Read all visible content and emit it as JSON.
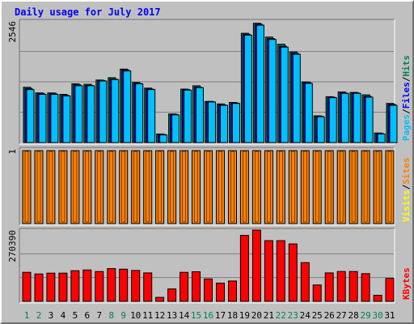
{
  "title": "Daily usage for July 2017",
  "colors": {
    "hits": "#00805c",
    "files": "#0000ff",
    "pages": "#00c0ff",
    "visits": "#ffff00",
    "sites": "#ff8000",
    "kbytes": "#ff0000",
    "day_green": "#00805c",
    "day_black": "#000000",
    "title": "#0000ff",
    "panel_bg": "#c0c0c0"
  },
  "chart_data": [
    {
      "type": "bar",
      "title": "Daily usage for July 2017",
      "axis_label_max": "2546",
      "legend": [
        {
          "text": "Hits",
          "color": "#00805c"
        },
        {
          "text": "/",
          "color": "#000000"
        },
        {
          "text": "Files",
          "color": "#0000ff"
        },
        {
          "text": "/",
          "color": "#000000"
        },
        {
          "text": "Pages",
          "color": "#00c0ff"
        }
      ],
      "categories": [
        "1",
        "2",
        "3",
        "4",
        "5",
        "6",
        "7",
        "8",
        "9",
        "10",
        "11",
        "12",
        "13",
        "14",
        "15",
        "16",
        "17",
        "18",
        "19",
        "20",
        "21",
        "22",
        "23",
        "24",
        "25",
        "26",
        "27",
        "28",
        "29",
        "30",
        "31"
      ],
      "ylim": [
        0,
        2546
      ],
      "series": [
        {
          "name": "Hits",
          "values": [
            1160,
            1040,
            1040,
            1010,
            1230,
            1220,
            1310,
            1360,
            1540,
            1260,
            1140,
            180,
            600,
            1120,
            1190,
            860,
            810,
            840,
            2290,
            2500,
            2210,
            2060,
            1900,
            1270,
            560,
            960,
            1060,
            1050,
            1000,
            200,
            820
          ]
        },
        {
          "name": "Files",
          "values": [
            1130,
            1030,
            1030,
            990,
            1210,
            1200,
            1300,
            1330,
            1520,
            1240,
            1120,
            170,
            590,
            1110,
            1160,
            860,
            790,
            830,
            2270,
            2480,
            2180,
            2020,
            1870,
            1260,
            550,
            950,
            1040,
            1040,
            970,
            190,
            800
          ]
        },
        {
          "name": "Pages",
          "values": [
            1110,
            1010,
            1010,
            980,
            1190,
            1190,
            1290,
            1320,
            1500,
            1230,
            1110,
            160,
            580,
            1100,
            1150,
            850,
            780,
            820,
            2250,
            2460,
            2160,
            2000,
            1850,
            1240,
            540,
            940,
            1030,
            1030,
            950,
            180,
            780
          ]
        }
      ]
    },
    {
      "type": "bar",
      "axis_label_max": "1",
      "legend": [
        {
          "text": "Sites",
          "color": "#ff8000"
        },
        {
          "text": "/",
          "color": "#000000"
        },
        {
          "text": "Visits",
          "color": "#ffff00"
        }
      ],
      "categories": [
        "1",
        "2",
        "3",
        "4",
        "5",
        "6",
        "7",
        "8",
        "9",
        "10",
        "11",
        "12",
        "13",
        "14",
        "15",
        "16",
        "17",
        "18",
        "19",
        "20",
        "21",
        "22",
        "23",
        "24",
        "25",
        "26",
        "27",
        "28",
        "29",
        "30",
        "31"
      ],
      "ylim": [
        0,
        1
      ],
      "series": [
        {
          "name": "Sites",
          "values": [
            1,
            1,
            1,
            1,
            1,
            1,
            1,
            1,
            1,
            1,
            1,
            1,
            1,
            1,
            1,
            1,
            1,
            1,
            1,
            1,
            1,
            1,
            1,
            1,
            1,
            1,
            1,
            1,
            1,
            1,
            1
          ]
        },
        {
          "name": "Visits",
          "values": [
            1,
            1,
            1,
            1,
            1,
            1,
            1,
            1,
            1,
            1,
            1,
            1,
            1,
            1,
            1,
            1,
            1,
            1,
            1,
            1,
            1,
            1,
            1,
            1,
            1,
            1,
            1,
            1,
            1,
            1,
            1
          ]
        }
      ]
    },
    {
      "type": "bar",
      "axis_label_max": "270390",
      "legend": [
        {
          "text": "KBytes",
          "color": "#ff0000"
        }
      ],
      "categories": [
        "1",
        "2",
        "3",
        "4",
        "5",
        "6",
        "7",
        "8",
        "9",
        "10",
        "11",
        "12",
        "13",
        "14",
        "15",
        "16",
        "17",
        "18",
        "19",
        "20",
        "21",
        "22",
        "23",
        "24",
        "25",
        "26",
        "27",
        "28",
        "29",
        "30",
        "31"
      ],
      "ylim": [
        0,
        270390
      ],
      "series": [
        {
          "name": "KBytes",
          "values": [
            110000,
            104000,
            107000,
            107000,
            116000,
            119000,
            113000,
            124000,
            122000,
            117000,
            108000,
            15000,
            47000,
            110000,
            112000,
            85000,
            69000,
            77000,
            250000,
            270000,
            230000,
            230000,
            218000,
            147000,
            62000,
            108000,
            113000,
            113000,
            105000,
            23000,
            87000
          ]
        }
      ]
    }
  ],
  "days": [
    {
      "label": "1",
      "weekend": true
    },
    {
      "label": "2",
      "weekend": true
    },
    {
      "label": "3",
      "weekend": false
    },
    {
      "label": "4",
      "weekend": false
    },
    {
      "label": "5",
      "weekend": false
    },
    {
      "label": "6",
      "weekend": false
    },
    {
      "label": "7",
      "weekend": false
    },
    {
      "label": "8",
      "weekend": true
    },
    {
      "label": "9",
      "weekend": true
    },
    {
      "label": "10",
      "weekend": false
    },
    {
      "label": "11",
      "weekend": false
    },
    {
      "label": "12",
      "weekend": false
    },
    {
      "label": "13",
      "weekend": false
    },
    {
      "label": "14",
      "weekend": false
    },
    {
      "label": "15",
      "weekend": true
    },
    {
      "label": "16",
      "weekend": true
    },
    {
      "label": "17",
      "weekend": false
    },
    {
      "label": "18",
      "weekend": false
    },
    {
      "label": "19",
      "weekend": false
    },
    {
      "label": "20",
      "weekend": false
    },
    {
      "label": "21",
      "weekend": false
    },
    {
      "label": "22",
      "weekend": true
    },
    {
      "label": "23",
      "weekend": true
    },
    {
      "label": "24",
      "weekend": false
    },
    {
      "label": "25",
      "weekend": false
    },
    {
      "label": "26",
      "weekend": false
    },
    {
      "label": "27",
      "weekend": false
    },
    {
      "label": "28",
      "weekend": false
    },
    {
      "label": "29",
      "weekend": true
    },
    {
      "label": "30",
      "weekend": true
    },
    {
      "label": "31",
      "weekend": false
    }
  ]
}
